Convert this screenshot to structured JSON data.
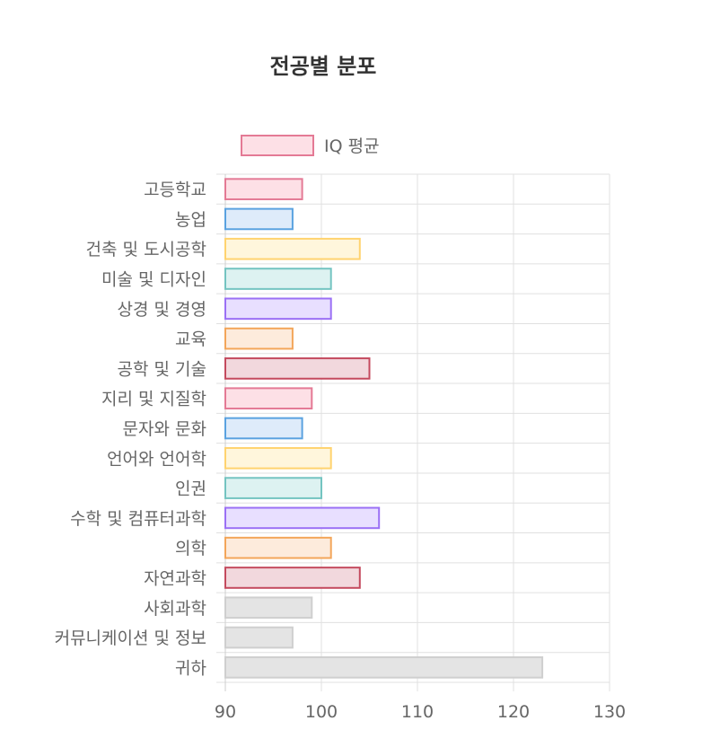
{
  "chart_data": {
    "type": "bar",
    "orientation": "horizontal",
    "title": "전공별 분포",
    "legend": [
      "IQ 평균"
    ],
    "legend_position": "top",
    "categories": [
      "고등학교",
      "농업",
      "건축 및 도시공학",
      "미술 및 디자인",
      "상경 및 경영",
      "교육",
      "공학 및 기술",
      "지리 및 지질학",
      "문자와 문화",
      "언어와 언어학",
      "인권",
      "수학 및 컴퓨터과학",
      "의학",
      "자연과학",
      "사회과학",
      "커뮤니케이션 및 정보",
      "귀하"
    ],
    "series": [
      {
        "name": "IQ 평균",
        "values": [
          98,
          97,
          104,
          101,
          101,
          97,
          105,
          99,
          98,
          101,
          100,
          106,
          101,
          104,
          99,
          97,
          123
        ]
      }
    ],
    "xlim": [
      90,
      130
    ],
    "xticks": [
      90,
      100,
      110,
      120,
      130
    ],
    "grid": true,
    "colors": [
      {
        "fill": "#fde0e6",
        "stroke": "#e47a95"
      },
      {
        "fill": "#deebfa",
        "stroke": "#5aa2e0"
      },
      {
        "fill": "#fff6dc",
        "stroke": "#ffd36f"
      },
      {
        "fill": "#ddf2f1",
        "stroke": "#74c4c1"
      },
      {
        "fill": "#e8dfff",
        "stroke": "#9b70f5"
      },
      {
        "fill": "#fdebdc",
        "stroke": "#f3a65a"
      },
      {
        "fill": "#f2d8dd",
        "stroke": "#c44a5e"
      },
      {
        "fill": "#e4e4e4",
        "stroke": "#cfcfcf"
      }
    ],
    "legend_color": {
      "fill": "#fde0e6",
      "stroke": "#e47a95"
    }
  }
}
